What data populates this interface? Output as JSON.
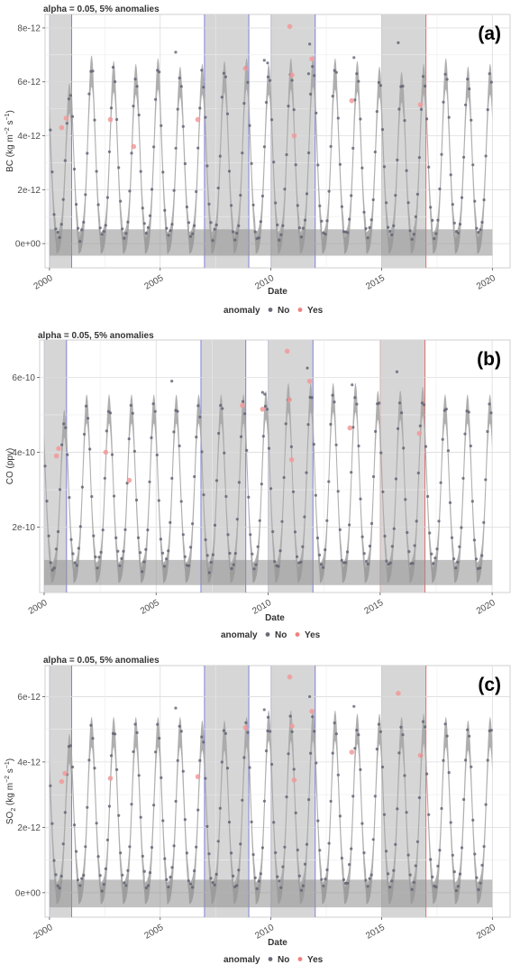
{
  "chart_data": [
    {
      "type": "scatter",
      "panel_label": "(a)",
      "title": "alpha = 0.05, 5% anomalies",
      "xlabel": "Date",
      "ylabel": "BC (kg m-2 s-1)",
      "ylabel_parts": [
        "BC",
        "(kg m",
        "−2",
        " s",
        "−1",
        ")"
      ],
      "y_ticks": [
        0,
        2e-12,
        4e-12,
        6e-12,
        8e-12
      ],
      "y_tick_labels": [
        "0e+00",
        "2e-12",
        "4e-12",
        "6e-12",
        "8e-12"
      ],
      "ylim": [
        -9e-13,
        8.5e-12
      ],
      "x_ticks": [
        2000,
        2005,
        2010,
        2015,
        2020
      ],
      "xlim": [
        1999.8,
        2020.8
      ],
      "base": 2e-13,
      "peaks": [
        5.6e-12,
        6.6e-12,
        6.4e-12,
        6.3e-12,
        6.5e-12,
        6.2e-12,
        6.3e-12,
        6.4e-12,
        6.5e-12,
        6.3e-12,
        6.5e-12,
        6.6e-12,
        6.5e-12,
        6.4e-12,
        6.2e-12,
        6e-12,
        6.3e-12,
        6.5e-12,
        6.2e-12,
        6.3e-12
      ],
      "band_low": 6.5e-13,
      "band_high": 6e-13,
      "grey_periods": [
        {
          "start": 2000.0,
          "end": 2001.0,
          "edge": "blue"
        },
        {
          "start": 2007.0,
          "end": 2009.0,
          "edge": "blue"
        },
        {
          "start": 2010.0,
          "end": 2012.0,
          "edge": "blue"
        },
        {
          "start": 2015.0,
          "end": 2017.0,
          "edge": "red"
        }
      ],
      "anomalies": [
        {
          "x": 2000.55,
          "y": 4.3e-12
        },
        {
          "x": 2000.75,
          "y": 4.65e-12
        },
        {
          "x": 2002.75,
          "y": 4.6e-12
        },
        {
          "x": 2003.8,
          "y": 3.6e-12
        },
        {
          "x": 2006.7,
          "y": 4.6e-12
        },
        {
          "x": 2008.85,
          "y": 6.5e-12
        },
        {
          "x": 2010.85,
          "y": 8.05e-12
        },
        {
          "x": 2010.95,
          "y": 6.25e-12
        },
        {
          "x": 2011.05,
          "y": 4e-12
        },
        {
          "x": 2011.85,
          "y": 6.85e-12
        },
        {
          "x": 2013.65,
          "y": 5.3e-12
        },
        {
          "x": 2016.75,
          "y": 5.15e-12
        }
      ],
      "outliers": [
        {
          "x": 2005.7,
          "y": 7.1e-12
        },
        {
          "x": 2009.7,
          "y": 6.8e-12
        },
        {
          "x": 2011.75,
          "y": 7.4e-12
        },
        {
          "x": 2013.75,
          "y": 6.9e-12
        },
        {
          "x": 2015.75,
          "y": 7.45e-12
        },
        {
          "x": 2011.7,
          "y": 6.3e-12
        },
        {
          "x": 2009.85,
          "y": 6.7e-12
        }
      ],
      "legend": {
        "title": "anomaly",
        "items": [
          {
            "label": "No",
            "color": "#6b6b7a"
          },
          {
            "label": "Yes",
            "color": "#f08080"
          }
        ]
      }
    },
    {
      "type": "scatter",
      "panel_label": "(b)",
      "title": "alpha = 0.05, 5% anomalies",
      "xlabel": "Date",
      "ylabel": "CO (ppv)",
      "ylabel_parts": [
        "CO",
        "(ppv)",
        "",
        "",
        "",
        ""
      ],
      "y_ticks": [
        2e-10,
        4e-10,
        6e-10
      ],
      "y_tick_labels": [
        "2e-10",
        "4e-10",
        "6e-10"
      ],
      "ylim": [
        2.5e-11,
        7e-10
      ],
      "x_ticks": [
        2000,
        2005,
        2010,
        2015,
        2020
      ],
      "xlim": [
        1999.8,
        2020.8
      ],
      "base": 9e-11,
      "peaks": [
        4.9e-10,
        5.3e-10,
        5.3e-10,
        5.3e-10,
        5.3e-10,
        5.3e-10,
        5.3e-10,
        5.3e-10,
        5.3e-10,
        5.4e-10,
        5.6e-10,
        5.6e-10,
        5.6e-10,
        5.6e-10,
        5.4e-10,
        5.4e-10,
        5.5e-10,
        5.3e-10,
        5.3e-10,
        5.3e-10
      ],
      "band_low": 4.5e-11,
      "band_high": 4e-11,
      "grey_periods": [
        {
          "start": 2000.0,
          "end": 2001.0,
          "edge": "blue"
        },
        {
          "start": 2007.0,
          "end": 2009.0,
          "edge": "blue"
        },
        {
          "start": 2010.0,
          "end": 2012.0,
          "edge": "blue"
        },
        {
          "start": 2015.0,
          "end": 2017.0,
          "edge": "red"
        }
      ],
      "anomalies": [
        {
          "x": 2000.55,
          "y": 3.9e-10
        },
        {
          "x": 2000.65,
          "y": 4.1e-10
        },
        {
          "x": 2002.75,
          "y": 4e-10
        },
        {
          "x": 2003.8,
          "y": 3.25e-10
        },
        {
          "x": 2008.85,
          "y": 5.25e-10
        },
        {
          "x": 2009.75,
          "y": 5.15e-10
        },
        {
          "x": 2010.85,
          "y": 6.7e-10
        },
        {
          "x": 2010.95,
          "y": 5.4e-10
        },
        {
          "x": 2011.05,
          "y": 3.8e-10
        },
        {
          "x": 2011.85,
          "y": 5.9e-10
        },
        {
          "x": 2013.65,
          "y": 4.65e-10
        },
        {
          "x": 2016.75,
          "y": 4.5e-10
        }
      ],
      "outliers": [
        {
          "x": 2005.7,
          "y": 5.9e-10
        },
        {
          "x": 2009.75,
          "y": 5.6e-10
        },
        {
          "x": 2011.75,
          "y": 6.25e-10
        },
        {
          "x": 2013.75,
          "y": 5.8e-10
        },
        {
          "x": 2015.75,
          "y": 6.15e-10
        },
        {
          "x": 2009.85,
          "y": 5.55e-10
        }
      ],
      "legend": {
        "title": "anomaly",
        "items": [
          {
            "label": "No",
            "color": "#6b6b7a"
          },
          {
            "label": "Yes",
            "color": "#f08080"
          }
        ]
      }
    },
    {
      "type": "scatter",
      "panel_label": "(c)",
      "title": "alpha = 0.05, 5% anomalies",
      "xlabel": "Date",
      "ylabel": "SO2 (kg m-2 s-1)",
      "ylabel_parts": [
        "SO",
        "(kg m",
        "−2",
        " s",
        "−1",
        ")"
      ],
      "ylabel_sub": "2",
      "y_ticks": [
        0,
        2e-12,
        4e-12,
        6e-12
      ],
      "y_tick_labels": [
        "0e+00",
        "2e-12",
        "4e-12",
        "6e-12"
      ],
      "ylim": [
        -7.5e-13,
        6.95e-12
      ],
      "x_ticks": [
        2000,
        2005,
        2010,
        2015,
        2020
      ],
      "xlim": [
        1999.8,
        2020.8
      ],
      "base": 1.5e-13,
      "peaks": [
        4.6e-12,
        5.1e-12,
        5.1e-12,
        5.1e-12,
        5.1e-12,
        5.1e-12,
        5e-12,
        5e-12,
        5.1e-12,
        5.3e-12,
        5.3e-12,
        5.3e-12,
        5.3e-12,
        5.2e-12,
        5.2e-12,
        5.1e-12,
        5.2e-12,
        5.1e-12,
        5e-12,
        5.1e-12
      ],
      "band_low": 6e-13,
      "band_high": 4.5e-13,
      "grey_periods": [
        {
          "start": 2000.0,
          "end": 2001.0,
          "edge": "blue"
        },
        {
          "start": 2007.0,
          "end": 2009.0,
          "edge": "blue"
        },
        {
          "start": 2010.0,
          "end": 2012.0,
          "edge": "blue"
        },
        {
          "start": 2015.0,
          "end": 2017.0,
          "edge": "red"
        }
      ],
      "anomalies": [
        {
          "x": 2000.55,
          "y": 3.4e-12
        },
        {
          "x": 2000.7,
          "y": 3.65e-12
        },
        {
          "x": 2002.75,
          "y": 3.5e-12
        },
        {
          "x": 2006.7,
          "y": 3.55e-12
        },
        {
          "x": 2008.85,
          "y": 5.05e-12
        },
        {
          "x": 2010.85,
          "y": 6.6e-12
        },
        {
          "x": 2010.95,
          "y": 5.1e-12
        },
        {
          "x": 2011.05,
          "y": 3.45e-12
        },
        {
          "x": 2011.85,
          "y": 5.55e-12
        },
        {
          "x": 2013.65,
          "y": 4.3e-12
        },
        {
          "x": 2015.75,
          "y": 6.1e-12
        },
        {
          "x": 2016.75,
          "y": 4.2e-12
        }
      ],
      "outliers": [
        {
          "x": 2005.7,
          "y": 5.65e-12
        },
        {
          "x": 2009.7,
          "y": 5.6e-12
        },
        {
          "x": 2011.75,
          "y": 6e-12
        },
        {
          "x": 2013.75,
          "y": 5.7e-12
        },
        {
          "x": 2009.85,
          "y": 4.95e-12
        }
      ],
      "legend": {
        "title": "anomaly",
        "items": [
          {
            "label": "No",
            "color": "#6b6b7a"
          },
          {
            "label": "Yes",
            "color": "#f08080"
          }
        ]
      }
    }
  ]
}
